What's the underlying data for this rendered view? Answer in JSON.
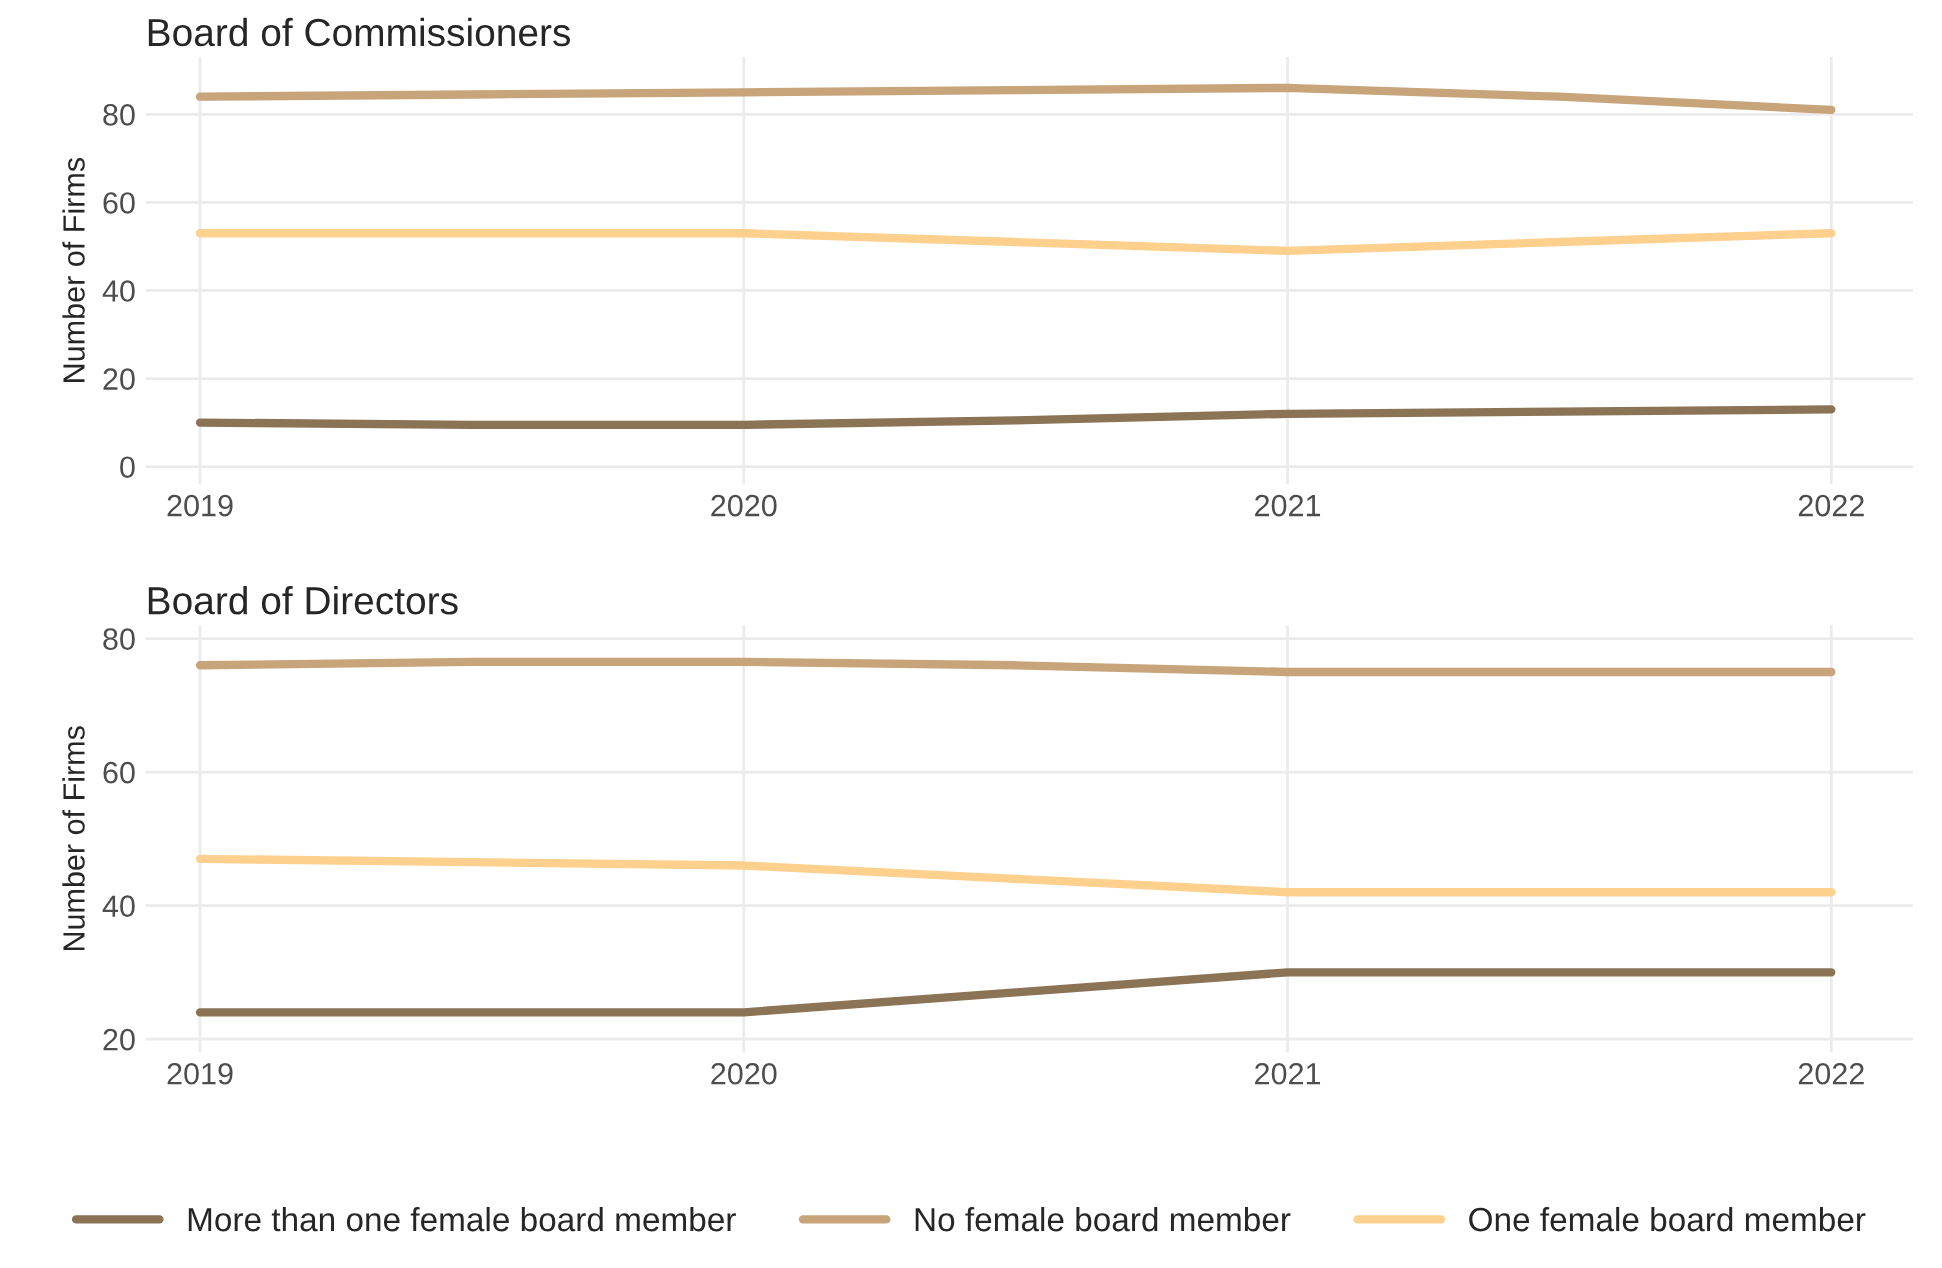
{
  "chart_data": [
    {
      "type": "line",
      "title": "Board of Commissioners",
      "ylabel": "Number of Firms",
      "x": [
        2019,
        2019.5,
        2020,
        2020.5,
        2021,
        2021.5,
        2022
      ],
      "series": [
        {
          "name": "More than one female board member",
          "color": "#8b7355",
          "values": [
            10,
            9.5,
            9.5,
            10.5,
            12,
            12.5,
            13
          ]
        },
        {
          "name": "No female board member",
          "color": "#c8a47a",
          "values": [
            84,
            84.5,
            85,
            85.5,
            86,
            84,
            81
          ]
        },
        {
          "name": "One female board member",
          "color": "#fdd08e",
          "values": [
            53,
            53,
            53,
            51,
            49,
            51,
            53
          ]
        }
      ],
      "xlim": [
        2018.9,
        2022.15
      ],
      "xticks": [
        2019,
        2020,
        2021,
        2022
      ],
      "ylim": [
        -4,
        93
      ],
      "yticks": [
        0,
        20,
        40,
        60,
        80
      ],
      "grid": true,
      "legend": "bottom",
      "line_style": "solid",
      "marker": "none"
    },
    {
      "type": "line",
      "title": "Board of Directors",
      "ylabel": "Number of Firms",
      "x": [
        2019,
        2019.5,
        2020,
        2020.5,
        2021,
        2021.5,
        2022
      ],
      "series": [
        {
          "name": "More than one female board member",
          "color": "#8b7355",
          "values": [
            24,
            24,
            24,
            27,
            30,
            30,
            30
          ]
        },
        {
          "name": "No female board member",
          "color": "#c8a47a",
          "values": [
            76,
            76.5,
            76.5,
            76,
            75,
            75,
            75
          ]
        },
        {
          "name": "One female board member",
          "color": "#fdd08e",
          "values": [
            47,
            46.5,
            46,
            44,
            42,
            42,
            42
          ]
        }
      ],
      "xlim": [
        2018.9,
        2022.15
      ],
      "xticks": [
        2019,
        2020,
        2021,
        2022
      ],
      "ylim": [
        18,
        82
      ],
      "yticks": [
        20,
        40,
        60,
        80
      ],
      "grid": true,
      "legend": "bottom",
      "line_style": "solid",
      "marker": "none"
    }
  ]
}
